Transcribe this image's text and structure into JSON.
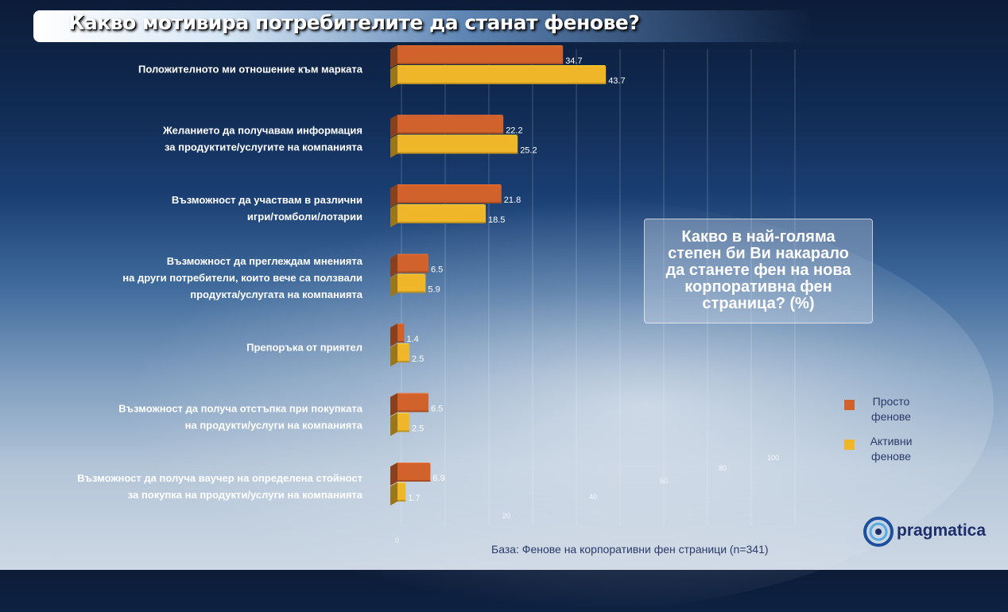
{
  "title": "Какво мотивира потребителите да станат фенове?",
  "question": "Какво в най-голяма степен би Ви накарало да станете фен на нова корпоративна фен страница? (%)",
  "base_note": "База: Фенове на корпоративни фен страници (n=341)",
  "logo_text": "pragmatica",
  "legend": [
    {
      "label": "Просто фенове",
      "color": "#d2622b"
    },
    {
      "label": "Активни фенове",
      "color": "#f0b62a"
    }
  ],
  "colors": {
    "simple": "#d2622b",
    "active": "#f0b62a"
  },
  "chart_data": {
    "type": "bar",
    "orientation": "horizontal",
    "categories": [
      [
        "Положителното ми отношение към марката"
      ],
      [
        "Желанието да получавам информация",
        "за продуктите/услугите на компанията"
      ],
      [
        "Възможност да участвам в различни",
        "игри/томболи/лотарии"
      ],
      [
        "Възможност да преглеждам мненията",
        "на други потребители, които вече са ползвали",
        "продукта/услугата на компанията"
      ],
      [
        "Препоръка от приятел"
      ],
      [
        "Възможност да получа отстъпка при покупката",
        "на продукти/услуги на компанията"
      ],
      [
        "Възможност да получа ваучер на определена стойност",
        "за покупка на продукти/услуги на компанията"
      ]
    ],
    "series": [
      {
        "name": "Просто фенове",
        "values": [
          34.7,
          22.2,
          21.8,
          6.5,
          1.4,
          6.5,
          6.9
        ]
      },
      {
        "name": "Активни фенове",
        "values": [
          43.7,
          25.2,
          18.5,
          5.9,
          2.5,
          2.5,
          1.7
        ]
      }
    ],
    "axis_ticks": [
      "0",
      "20",
      "40",
      "60",
      "80",
      "100"
    ],
    "xlim": [
      0,
      100
    ],
    "grid": true,
    "legend_position": "right"
  }
}
